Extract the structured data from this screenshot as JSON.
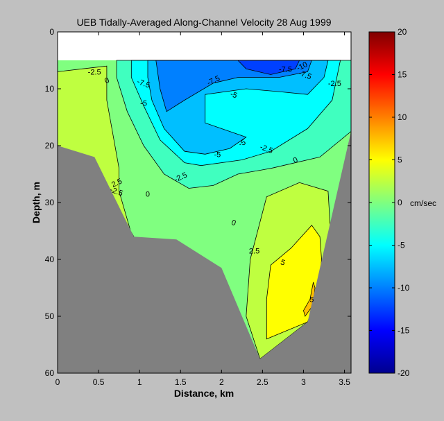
{
  "chart_data": {
    "type": "contour",
    "title": "UEB   Tidally-Averaged  Along-Channel Velocity   28 Aug 1999",
    "xlabel": "Distance, km",
    "ylabel": "Depth, m",
    "xlim": [
      0,
      3.58
    ],
    "ylim": [
      60,
      0
    ],
    "xticks": [
      "0",
      "0.5",
      "1",
      "1.5",
      "2",
      "2.5",
      "3",
      "3.5"
    ],
    "yticks": [
      "0",
      "10",
      "20",
      "30",
      "40",
      "50",
      "60"
    ],
    "colorbar": {
      "label": "cm/sec",
      "range": [
        -20,
        20
      ],
      "ticks": [
        "20",
        "15",
        "10",
        "5",
        "0",
        "-5",
        "-10",
        "-15",
        "-20"
      ]
    },
    "contour_levels": [
      -10,
      -7.5,
      -5,
      -2.5,
      0,
      2.5,
      5,
      7.5
    ],
    "contour_labels": [
      "-2.5",
      "0",
      "-7.5",
      "-5",
      "-7.5",
      "-5",
      "-7.5",
      "-10",
      "-7.5",
      "-2.5",
      "-5",
      "-2.5",
      "-5",
      "-2.5",
      "-2.5",
      "0",
      "0",
      "0",
      "2.5",
      "2.5",
      "5",
      "5"
    ],
    "bottom_profile": [
      {
        "x": 0,
        "depth": 20
      },
      {
        "x": 0.45,
        "depth": 22
      },
      {
        "x": 0.93,
        "depth": 36
      },
      {
        "x": 1.45,
        "depth": 36.5
      },
      {
        "x": 2.0,
        "depth": 41.5
      },
      {
        "x": 2.47,
        "depth": 57.5
      },
      {
        "x": 3.05,
        "depth": 51
      },
      {
        "x": 3.58,
        "depth": 17.5
      }
    ],
    "regions": [
      {
        "level": 2.5,
        "polygon": [
          [
            0.0,
            7
          ],
          [
            0.6,
            6
          ],
          [
            0.6,
            12
          ],
          [
            0.75,
            24
          ],
          [
            0.75,
            28
          ],
          [
            0.89,
            35
          ],
          [
            0.93,
            36
          ],
          [
            0,
            36
          ]
        ]
      },
      {
        "level": 2.5,
        "polygon": [
          [
            2.3,
            50
          ],
          [
            2.35,
            40
          ],
          [
            2.55,
            29
          ],
          [
            2.95,
            26.5
          ],
          [
            3.3,
            28
          ],
          [
            3.35,
            40
          ],
          [
            3.05,
            51
          ],
          [
            2.47,
            57.5
          ]
        ]
      },
      {
        "level": 5,
        "polygon": [
          [
            2.55,
            47
          ],
          [
            2.6,
            41
          ],
          [
            2.85,
            38
          ],
          [
            3.1,
            34
          ],
          [
            3.2,
            36
          ],
          [
            3.22,
            40
          ],
          [
            3.18,
            47
          ],
          [
            3.05,
            51
          ],
          [
            2.55,
            54
          ]
        ]
      },
      {
        "level": 7.5,
        "polygon": [
          [
            3.0,
            49
          ],
          [
            3.08,
            47
          ],
          [
            3.12,
            44
          ],
          [
            3.14,
            45
          ],
          [
            3.12,
            48
          ],
          [
            3.02,
            50
          ]
        ]
      },
      {
        "level": -2.5,
        "polygon": [
          [
            0.72,
            5
          ],
          [
            3.58,
            5
          ],
          [
            3.58,
            17.5
          ],
          [
            3.2,
            22
          ],
          [
            2.6,
            24
          ],
          [
            2.2,
            25
          ],
          [
            1.9,
            27
          ],
          [
            1.6,
            27.5
          ],
          [
            1.3,
            25
          ],
          [
            1.05,
            20
          ],
          [
            0.85,
            14
          ],
          [
            0.72,
            8
          ]
        ]
      },
      {
        "level": -5,
        "polygon": [
          [
            0.9,
            5
          ],
          [
            3.45,
            5
          ],
          [
            3.35,
            12
          ],
          [
            3.05,
            17
          ],
          [
            2.6,
            21
          ],
          [
            2.25,
            22.5
          ],
          [
            1.75,
            23.5
          ],
          [
            1.55,
            23
          ],
          [
            1.25,
            19
          ],
          [
            1.05,
            13
          ],
          [
            0.9,
            8
          ]
        ]
      },
      {
        "level": -7.5,
        "polygon": [
          [
            1.1,
            5
          ],
          [
            3.3,
            5
          ],
          [
            3.25,
            8
          ],
          [
            3.05,
            11
          ],
          [
            2.7,
            10.5
          ],
          [
            2.3,
            10
          ],
          [
            1.8,
            11
          ],
          [
            1.8,
            16
          ],
          [
            2.1,
            17.5
          ],
          [
            2.3,
            18.5
          ],
          [
            2.1,
            20.5
          ],
          [
            1.8,
            21.5
          ],
          [
            1.55,
            21
          ],
          [
            1.3,
            17
          ],
          [
            1.15,
            12
          ],
          [
            1.1,
            8
          ]
        ]
      },
      {
        "level": -10,
        "polygon": [
          [
            1.2,
            5
          ],
          [
            3.1,
            5
          ],
          [
            3.05,
            7
          ],
          [
            2.7,
            8
          ],
          [
            2.2,
            8
          ],
          [
            1.9,
            9
          ],
          [
            1.55,
            12
          ],
          [
            1.33,
            14
          ],
          [
            1.25,
            10
          ]
        ]
      },
      {
        "level": -12.5,
        "polygon": [
          [
            2.2,
            5
          ],
          [
            2.95,
            5
          ],
          [
            2.9,
            6.5
          ],
          [
            2.6,
            7.5
          ],
          [
            2.3,
            6.5
          ]
        ]
      }
    ]
  }
}
